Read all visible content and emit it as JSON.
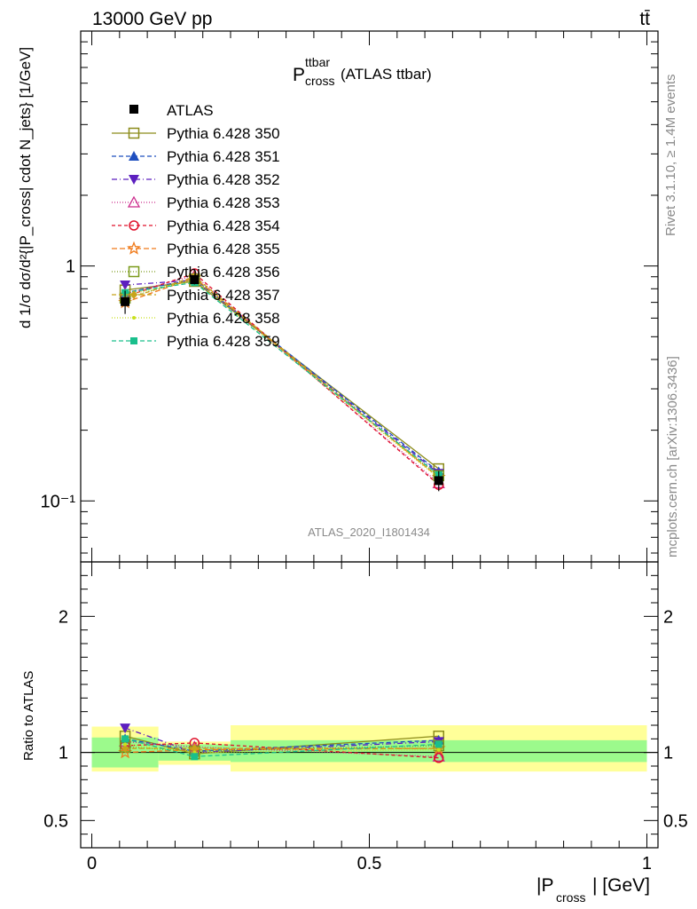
{
  "header": {
    "left": "13000 GeV pp",
    "right": "tt̄"
  },
  "title": {
    "main": "P",
    "sup": "ttbar",
    "sub": "cross",
    "suffix": "(ATLAS ttbar)"
  },
  "ylabel_top": "d 1/σ dσ/d²{|P_cross| cdot N_jets} [1/GeV]",
  "ylabel_bottom": "Ratio to ATLAS",
  "xlabel": {
    "main": "|P",
    "sub": "cross",
    "suffix": "| [GeV]"
  },
  "watermark": "ATLAS_2020_I1801434",
  "side_top": "Rivet 3.1.10, ≥ 1.4M events",
  "side_bottom": "mcplots.cern.ch [arXiv:1306.3436]",
  "colors": {
    "band_inner": "#9cfa8c",
    "band_outer": "#ffff99"
  },
  "chart_data": {
    "type": "line",
    "x_bins": [
      [
        0.0,
        0.12
      ],
      [
        0.12,
        0.25
      ],
      [
        0.25,
        1.0
      ]
    ],
    "x": [
      0.06,
      0.185,
      0.625
    ],
    "xlim": [
      -0.02,
      1.02
    ],
    "ylim_top": [
      0.055,
      10.0
    ],
    "ylog_top": true,
    "ylim_bottom": [
      0.3,
      2.4
    ],
    "ytick_labels_top": [
      "10⁻¹",
      "1"
    ],
    "ytick_labels_bottom": [
      "0.5",
      "1",
      "2"
    ],
    "xtick_labels": [
      "0",
      "0.5",
      "1"
    ],
    "bands": {
      "inner": [
        [
          0.89,
          1.11
        ],
        [
          0.94,
          1.06
        ],
        [
          0.93,
          1.09
        ]
      ],
      "outer": [
        [
          0.86,
          1.19
        ],
        [
          0.91,
          1.08
        ],
        [
          0.86,
          1.2
        ]
      ]
    },
    "atlas": {
      "name": "ATLAS",
      "values": [
        0.705,
        0.875,
        0.122
      ],
      "err": [
        0.08,
        0.04,
        0.012
      ]
    },
    "series": [
      {
        "name": "Pythia 6.428 350",
        "color": "#8c8c1a",
        "marker": "square-open",
        "dash": "",
        "values": [
          0.79,
          0.86,
          0.137
        ],
        "ratio": [
          1.12,
          0.99,
          1.12
        ]
      },
      {
        "name": "Pythia 6.428 351",
        "color": "#1f4fbf",
        "marker": "triangle-up",
        "dash": "5,3",
        "values": [
          0.77,
          0.88,
          0.133
        ],
        "ratio": [
          1.1,
          1.01,
          1.09
        ]
      },
      {
        "name": "Pythia 6.428 352",
        "color": "#5c1fbf",
        "marker": "triangle-down",
        "dash": "6,3,1,3",
        "values": [
          0.83,
          0.87,
          0.131
        ],
        "ratio": [
          1.18,
          1.0,
          1.08
        ]
      },
      {
        "name": "Pythia 6.428 353",
        "color": "#cc2a8c",
        "marker": "triangle-open",
        "dash": "1,2",
        "values": [
          0.76,
          0.91,
          0.119
        ],
        "ratio": [
          1.08,
          1.04,
          0.97
        ]
      },
      {
        "name": "Pythia 6.428 354",
        "color": "#e0102a",
        "marker": "circle-open",
        "dash": "4,3",
        "values": [
          0.74,
          0.93,
          0.117
        ],
        "ratio": [
          1.05,
          1.07,
          0.96
        ]
      },
      {
        "name": "Pythia 6.428 355",
        "color": "#f07a1a",
        "marker": "star-open",
        "dash": "6,3",
        "values": [
          0.7,
          0.89,
          0.126
        ],
        "ratio": [
          1.0,
          1.02,
          1.03
        ]
      },
      {
        "name": "Pythia 6.428 356",
        "color": "#7a9a1a",
        "marker": "square-open",
        "dash": "1,2",
        "values": [
          0.73,
          0.88,
          0.128
        ],
        "ratio": [
          1.04,
          1.01,
          1.05
        ]
      },
      {
        "name": "Pythia 6.428 357",
        "color": "#c8a31a",
        "marker": "diamond",
        "dash": "5,3",
        "values": [
          0.72,
          0.9,
          0.126
        ],
        "ratio": [
          1.03,
          1.03,
          1.03
        ]
      },
      {
        "name": "Pythia 6.428 358",
        "color": "#c8e01a",
        "marker": "dot",
        "dash": "1,2",
        "values": [
          0.75,
          0.87,
          0.125
        ],
        "ratio": [
          1.06,
          1.0,
          1.02
        ]
      },
      {
        "name": "Pythia 6.428 359",
        "color": "#1abf8c",
        "marker": "square",
        "dash": "5,3",
        "values": [
          0.77,
          0.85,
          0.129
        ],
        "ratio": [
          1.1,
          0.97,
          1.06
        ]
      }
    ]
  }
}
